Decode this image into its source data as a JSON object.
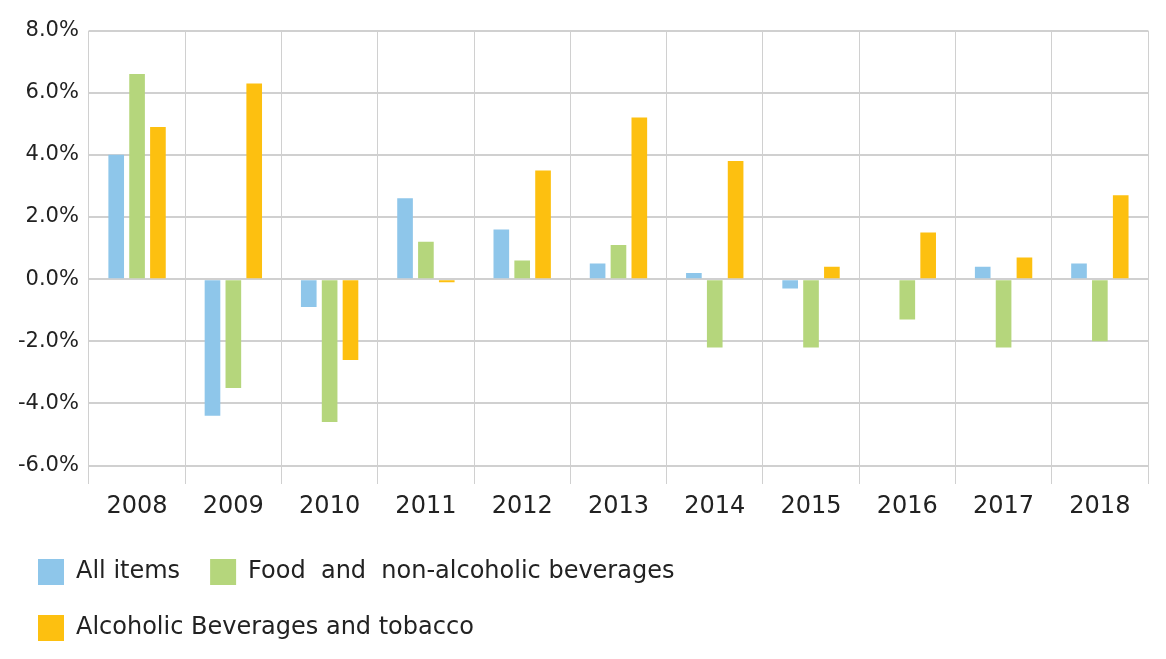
{
  "chart_data": {
    "type": "bar",
    "categories": [
      "2008",
      "2009",
      "2010",
      "2011",
      "2012",
      "2013",
      "2014",
      "2015",
      "2016",
      "2017",
      "2018"
    ],
    "series": [
      {
        "name": "All items",
        "color": "#8ec6ea",
        "values": [
          4.0,
          -4.4,
          -0.9,
          2.6,
          1.6,
          0.5,
          0.2,
          -0.3,
          null,
          0.4,
          0.5
        ]
      },
      {
        "name": "Food  and  non-alcoholic beverages",
        "color": "#b5d67c",
        "values": [
          6.6,
          -3.5,
          -4.6,
          1.2,
          0.6,
          1.1,
          -2.2,
          -2.2,
          -1.3,
          -2.2,
          -2.0
        ]
      },
      {
        "name": "Alcoholic Beverages and tobacco",
        "color": "#fdc010",
        "values": [
          4.9,
          6.3,
          -2.6,
          -0.1,
          3.5,
          5.2,
          3.8,
          0.4,
          1.5,
          0.7,
          2.7
        ]
      }
    ],
    "ylim": [
      -6.6,
      8
    ],
    "yticks": [
      {
        "value": -6,
        "label": "-6.0%"
      },
      {
        "value": -4,
        "label": "-4.0%"
      },
      {
        "value": -2,
        "label": "-2.0%"
      },
      {
        "value": 0,
        "label": "0.0%"
      },
      {
        "value": 2,
        "label": "2.0%"
      },
      {
        "value": 4,
        "label": "4.0%"
      },
      {
        "value": 6,
        "label": "6.0%"
      },
      {
        "value": 8,
        "label": "8.0%"
      }
    ],
    "grid": true,
    "legend": "bottom"
  }
}
